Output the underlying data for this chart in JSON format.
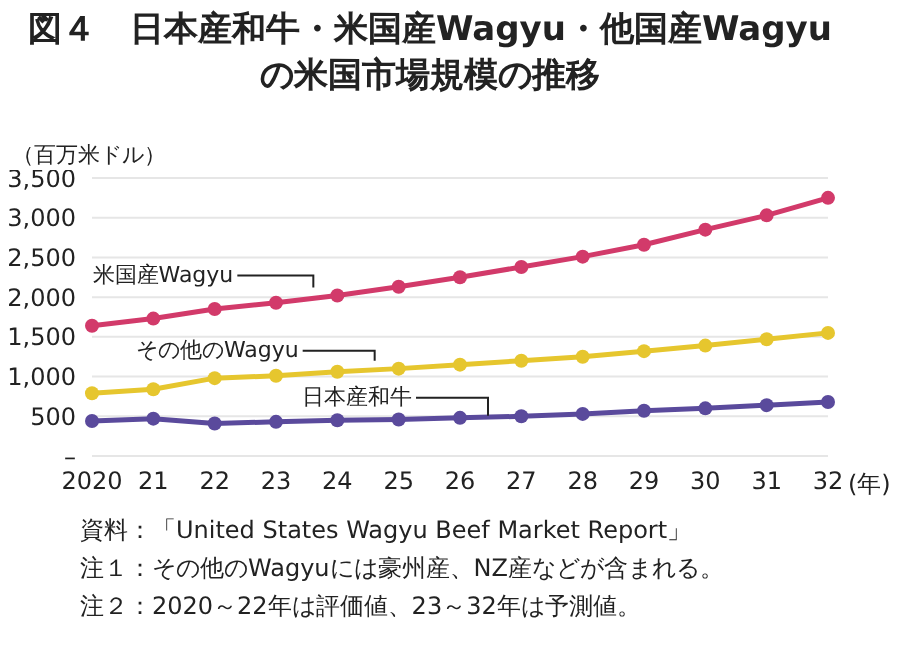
{
  "chart_data": {
    "type": "line",
    "title": "図４　日本産和牛・米国産Wagyu・他国産Wagyuの米国市場規模の推移",
    "ylabel": "（百万米ドル）",
    "xlabel": "(年)",
    "categories": [
      "2020",
      "21",
      "22",
      "23",
      "24",
      "25",
      "26",
      "27",
      "28",
      "29",
      "30",
      "31",
      "32"
    ],
    "series": [
      {
        "name": "米国産Wagyu",
        "color": "#d23a6a",
        "values": [
          1640,
          1730,
          1850,
          1930,
          2020,
          2130,
          2250,
          2380,
          2510,
          2660,
          2850,
          3030,
          3250
        ]
      },
      {
        "name": "その他のWagyu",
        "color": "#e6c62e",
        "values": [
          790,
          840,
          980,
          1010,
          1060,
          1100,
          1150,
          1200,
          1250,
          1320,
          1390,
          1470,
          1550
        ]
      },
      {
        "name": "日本産和牛",
        "color": "#5a4a9c",
        "values": [
          440,
          470,
          410,
          430,
          450,
          460,
          480,
          500,
          530,
          570,
          600,
          640,
          680
        ]
      }
    ],
    "ylim": [
      0,
      3500
    ],
    "yticks": [
      {
        "value": 0,
        "label": "–"
      },
      500,
      {
        "value": 1000,
        "label": "1,000"
      },
      {
        "value": 1500,
        "label": "1,500"
      },
      {
        "value": 2000,
        "label": "2,000"
      },
      {
        "value": 2500,
        "label": "2,500"
      },
      {
        "value": 3000,
        "label": "3,000"
      },
      {
        "value": 3500,
        "label": "3,500"
      }
    ],
    "grid": "y",
    "legend": false,
    "marker": "circle",
    "line_style": "solid",
    "annotations": [
      "資料：「United States Wagyu Beef Market Report」",
      "注１：その他のWagyuには豪州産、NZ産などが含まれる。",
      "注２：2020～22年は評価値、23～32年は予測値。"
    ]
  }
}
